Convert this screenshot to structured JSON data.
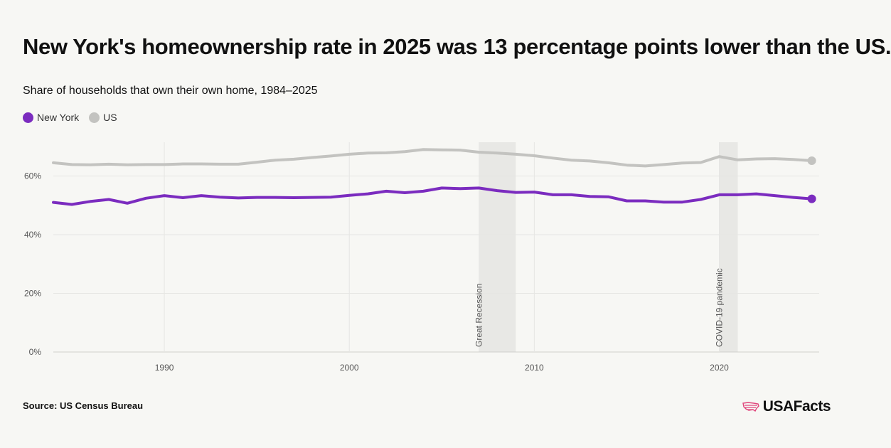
{
  "header": {
    "title": "New York's homeownership rate in 2025 was 13 percentage points lower than the US."
  },
  "chart_data": {
    "type": "line",
    "title": "New York's homeownership rate in 2025 was 13 percentage points lower than the US.",
    "subtitle": "Share of households that own their own home, 1984–2025",
    "x": [
      1984,
      1985,
      1986,
      1987,
      1988,
      1989,
      1990,
      1991,
      1992,
      1993,
      1994,
      1995,
      1996,
      1997,
      1998,
      1999,
      2000,
      2001,
      2002,
      2003,
      2004,
      2005,
      2006,
      2007,
      2008,
      2009,
      2010,
      2011,
      2012,
      2013,
      2014,
      2015,
      2016,
      2017,
      2018,
      2019,
      2020,
      2021,
      2022,
      2023,
      2024,
      2025
    ],
    "series": [
      {
        "name": "New York",
        "color": "#7b2cbf",
        "values": [
          51.0,
          50.3,
          51.3,
          52.0,
          50.7,
          52.4,
          53.3,
          52.6,
          53.3,
          52.8,
          52.5,
          52.7,
          52.7,
          52.6,
          52.7,
          52.8,
          53.4,
          53.9,
          54.8,
          54.3,
          54.8,
          55.9,
          55.7,
          55.9,
          55.0,
          54.4,
          54.5,
          53.6,
          53.6,
          53.0,
          52.9,
          51.5,
          51.5,
          51.1,
          51.1,
          52.0,
          53.6,
          53.6,
          53.9,
          53.3,
          52.7,
          52.2
        ]
      },
      {
        "name": "US",
        "color": "#c3c3c0",
        "values": [
          64.5,
          63.9,
          63.8,
          64.0,
          63.8,
          63.9,
          63.9,
          64.1,
          64.1,
          64.0,
          64.0,
          64.7,
          65.4,
          65.7,
          66.3,
          66.8,
          67.4,
          67.8,
          67.9,
          68.3,
          69.0,
          68.9,
          68.8,
          68.1,
          67.8,
          67.4,
          66.9,
          66.1,
          65.4,
          65.1,
          64.5,
          63.7,
          63.4,
          63.9,
          64.4,
          64.6,
          66.6,
          65.5,
          65.8,
          65.9,
          65.6,
          65.2
        ]
      }
    ],
    "x_ticks": [
      "1990",
      "2000",
      "2010",
      "2020"
    ],
    "y_ticks": [
      "0%",
      "20%",
      "40%",
      "60%"
    ],
    "xlim": [
      1984,
      2025.4
    ],
    "ylim": [
      0,
      71.5
    ],
    "grid": true,
    "legend": "top-left",
    "annotations": [
      {
        "label": "Great Recession",
        "start": 2007,
        "end": 2009
      },
      {
        "label": "COVID-19 pandemic",
        "start": 2020,
        "end": 2021
      }
    ]
  },
  "footer": {
    "source": "Source: US Census Bureau",
    "brand": "USAFacts",
    "brand_icon": "us-map-icon",
    "brand_icon_color": "#e0457b"
  }
}
